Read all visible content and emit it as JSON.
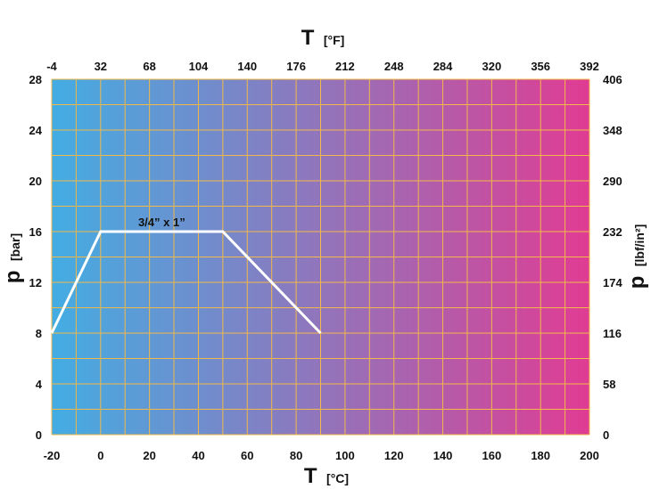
{
  "chart_data": {
    "type": "line",
    "x_axis_bottom": {
      "symbol": "T",
      "unit": "[°C]",
      "ticks": [
        -20,
        0,
        20,
        40,
        60,
        80,
        100,
        120,
        140,
        160,
        180,
        200
      ],
      "range": [
        -20,
        200
      ]
    },
    "x_axis_top": {
      "symbol": "T",
      "unit": "[°F]",
      "ticks": [
        -4,
        32,
        68,
        104,
        140,
        176,
        212,
        248,
        284,
        320,
        356,
        392
      ]
    },
    "y_axis_left": {
      "symbol": "p",
      "unit": "[bar]",
      "ticks": [
        0,
        4,
        8,
        12,
        16,
        20,
        24,
        28
      ],
      "range": [
        0,
        28
      ]
    },
    "y_axis_right": {
      "symbol": "p",
      "unit": "[lbf/in²]",
      "ticks": [
        0,
        58,
        116,
        174,
        232,
        290,
        348,
        406
      ]
    },
    "grid": true,
    "series": [
      {
        "name": "3/4” x 1”",
        "x": [
          -20,
          0,
          50,
          90
        ],
        "y": [
          8,
          16,
          16,
          8
        ]
      }
    ],
    "colors": {
      "gradient_start": "#43ade3",
      "gradient_end": "#e03c93",
      "grid": "#f2b84a",
      "line": "#ffffff"
    }
  }
}
